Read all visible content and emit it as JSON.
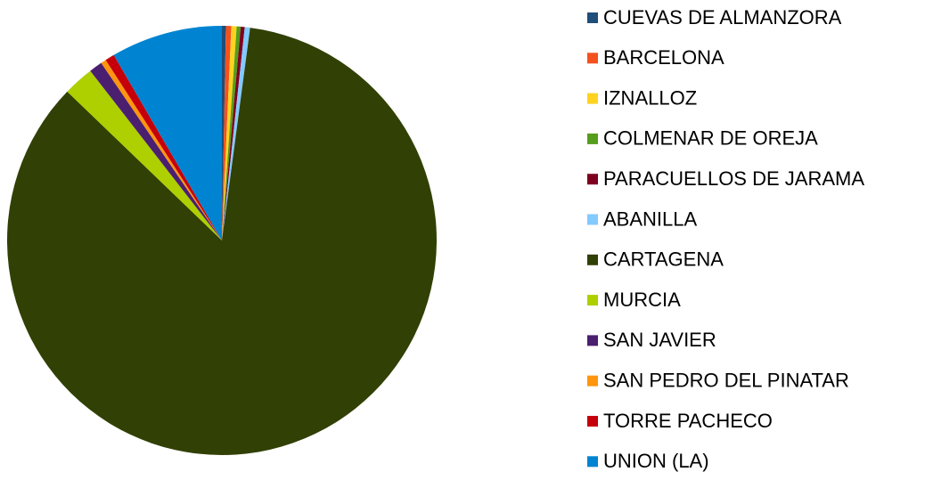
{
  "chart_data": {
    "type": "pie",
    "categories": [
      "CUEVAS DE ALMANZORA",
      "BARCELONA",
      "IZNALLOZ",
      "COLMENAR DE OREJA",
      "PARACUELLOS DE JARAMA",
      "ABANILLA",
      "CARTAGENA",
      "MURCIA",
      "SAN JAVIER",
      "SAN PEDRO DEL PINATAR",
      "TORRE PACHECO",
      "UNION (LA)"
    ],
    "values": [
      0.3,
      0.4,
      0.4,
      0.3,
      0.3,
      0.4,
      85.1,
      2.3,
      1.0,
      0.4,
      0.7,
      8.4
    ],
    "colors": [
      "#1f4e79",
      "#f4511e",
      "#ffd320",
      "#579d1c",
      "#7e0021",
      "#83caff",
      "#314004",
      "#aecf00",
      "#4b1f6f",
      "#ff950e",
      "#c5000b",
      "#0084d1"
    ],
    "legend": "right"
  }
}
